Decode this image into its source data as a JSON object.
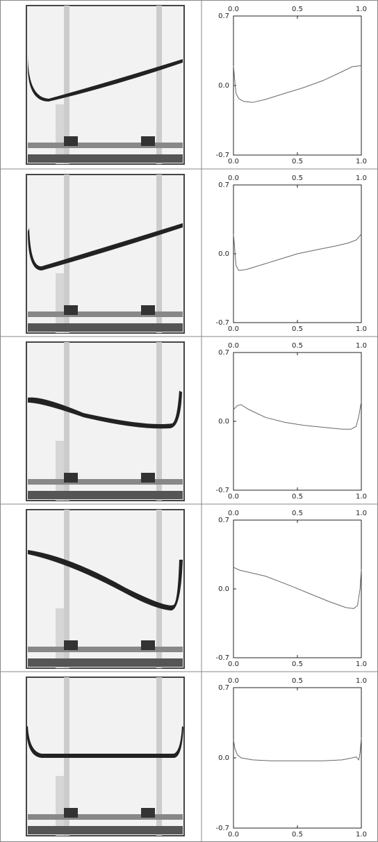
{
  "chart_data": [
    {
      "type": "line",
      "color": "#666",
      "mirror_x": true,
      "x": [
        0,
        0.01,
        0.02,
        0.04,
        0.08,
        0.15,
        0.25,
        0.4,
        0.55,
        0.7,
        0.85,
        0.93,
        1.0
      ],
      "values": [
        0.2,
        0.05,
        -0.08,
        -0.13,
        -0.16,
        -0.17,
        -0.14,
        -0.08,
        -0.02,
        0.05,
        0.14,
        0.19,
        0.2
      ],
      "xlim": [
        0,
        1
      ],
      "ylim": [
        -0.7,
        0.7
      ],
      "xticks": [
        {
          "value": 0,
          "label": "0.0"
        },
        0.5,
        {
          "value": 1,
          "label": "1.0"
        }
      ],
      "yticks": [
        -0.7,
        {
          "value": 0,
          "label": "0.0"
        },
        0.7
      ]
    },
    {
      "type": "line",
      "color": "#666",
      "mirror_x": true,
      "x": [
        0,
        0.01,
        0.02,
        0.04,
        0.1,
        0.2,
        0.35,
        0.5,
        0.65,
        0.8,
        0.9,
        0.96,
        1.0
      ],
      "values": [
        0.2,
        0.05,
        -0.12,
        -0.17,
        -0.16,
        -0.12,
        -0.06,
        0.0,
        0.04,
        0.08,
        0.11,
        0.14,
        0.2
      ],
      "xlim": [
        0,
        1
      ],
      "ylim": [
        -0.7,
        0.7
      ],
      "xticks": [
        {
          "value": 0,
          "label": "0.0"
        },
        0.5,
        {
          "value": 1,
          "label": "1.0"
        }
      ],
      "yticks": [
        -0.7,
        {
          "value": 0,
          "label": "0.0"
        },
        0.7
      ]
    },
    {
      "type": "line",
      "color": "#666",
      "mirror_x": true,
      "x": [
        0,
        0.03,
        0.06,
        0.12,
        0.25,
        0.4,
        0.55,
        0.7,
        0.85,
        0.92,
        0.96,
        0.98,
        1.0
      ],
      "values": [
        0.12,
        0.16,
        0.17,
        0.12,
        0.04,
        -0.01,
        -0.04,
        -0.06,
        -0.08,
        -0.08,
        -0.05,
        0.05,
        0.2
      ],
      "xlim": [
        0,
        1
      ],
      "ylim": [
        -0.7,
        0.7
      ],
      "xticks": [
        {
          "value": 0,
          "label": "0.0"
        },
        0.5,
        {
          "value": 1,
          "label": "1.0"
        }
      ],
      "yticks": [
        -0.7,
        {
          "value": 0,
          "label": "0.0"
        },
        0.7
      ]
    },
    {
      "type": "line",
      "color": "#666",
      "mirror_x": true,
      "x": [
        0,
        0.05,
        0.15,
        0.25,
        0.35,
        0.45,
        0.6,
        0.75,
        0.88,
        0.94,
        0.97,
        0.99,
        1.0
      ],
      "values": [
        0.22,
        0.19,
        0.16,
        0.13,
        0.08,
        0.03,
        -0.05,
        -0.13,
        -0.19,
        -0.2,
        -0.17,
        0.0,
        0.2
      ],
      "xlim": [
        0,
        1
      ],
      "ylim": [
        -0.7,
        0.7
      ],
      "xticks": [
        {
          "value": 0,
          "label": "0.0"
        },
        0.5,
        {
          "value": 1,
          "label": "1.0"
        }
      ],
      "yticks": [
        -0.7,
        {
          "value": 0,
          "label": "0.0"
        },
        0.7
      ]
    },
    {
      "type": "line",
      "color": "#666",
      "mirror_x": true,
      "x": [
        0,
        0.01,
        0.03,
        0.06,
        0.15,
        0.3,
        0.5,
        0.7,
        0.85,
        0.93,
        0.96,
        0.98,
        0.99,
        1.0
      ],
      "values": [
        0.18,
        0.1,
        0.03,
        0.0,
        -0.02,
        -0.03,
        -0.03,
        -0.03,
        -0.02,
        0.0,
        0.01,
        -0.02,
        0.05,
        0.2
      ],
      "xlim": [
        0,
        1
      ],
      "ylim": [
        -0.7,
        0.7
      ],
      "xticks": [
        {
          "value": 0,
          "label": "0.0"
        },
        0.5,
        {
          "value": 1,
          "label": "1.0"
        }
      ],
      "yticks": [
        -0.7,
        {
          "value": 0,
          "label": "0.0"
        },
        0.7
      ]
    }
  ]
}
